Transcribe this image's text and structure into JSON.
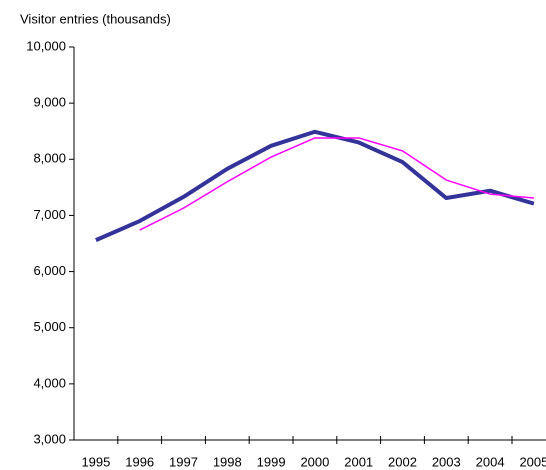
{
  "chart_data": {
    "type": "line",
    "title": "Visitor entries (thousands)",
    "categories": [
      "1995",
      "1996",
      "1997",
      "1998",
      "1999",
      "2000",
      "2001",
      "2002",
      "2003",
      "2004",
      "2005"
    ],
    "series": [
      {
        "color": "#333399",
        "values": [
          6560,
          6900,
          7330,
          7830,
          8240,
          8490,
          8300,
          7950,
          7310,
          7440,
          7210
        ]
      },
      {
        "color": "#ff00ff",
        "values": [
          null,
          6740,
          7130,
          7600,
          8040,
          8380,
          8380,
          8150,
          7630,
          7380,
          7310
        ]
      }
    ],
    "ylim": [
      3000,
      10000
    ],
    "yticks": [
      {
        "value": 3000,
        "label": "3,000"
      },
      {
        "value": 4000,
        "label": "4,000"
      },
      {
        "value": 5000,
        "label": "5,000"
      },
      {
        "value": 6000,
        "label": "6,000"
      },
      {
        "value": 7000,
        "label": "7,000"
      },
      {
        "value": 8000,
        "label": "8,000"
      },
      {
        "value": 9000,
        "label": "9,000"
      },
      {
        "value": 10000,
        "label": "10,000"
      }
    ],
    "grid": false
  }
}
